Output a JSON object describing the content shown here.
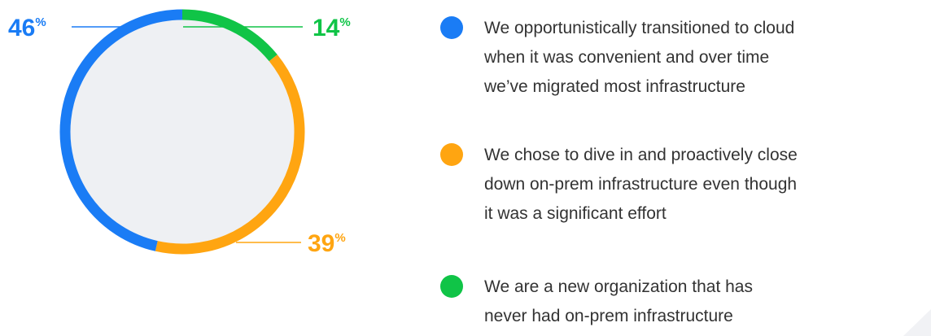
{
  "chart_data": {
    "type": "donut",
    "categories": [
      [
        "We opportunistically transitioned to cloud",
        "when it was convenient and over time",
        "we’ve migrated most infrastructure"
      ],
      [
        "We chose to dive in and proactively close",
        "down on-prem infrastructure even though",
        "it was a significant effort"
      ],
      [
        "We are a new organization that has",
        "never had on-prem infrastructure"
      ]
    ],
    "values": [
      46,
      39,
      14
    ],
    "unit": "%",
    "colors": [
      "#1a7cf5",
      "#ffa511",
      "#10c447"
    ]
  }
}
